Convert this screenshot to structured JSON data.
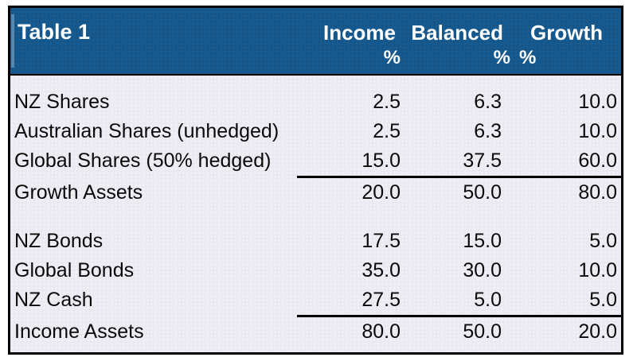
{
  "table": {
    "title": "Table 1",
    "columns": {
      "income": "Income",
      "balanced": "Balanced",
      "growth": "Growth"
    },
    "units": {
      "income": "%",
      "balanced": "%",
      "growth": "%"
    },
    "sections": [
      {
        "rows": [
          {
            "label": "NZ Shares",
            "values": [
              "2.5",
              "6.3",
              "10.0"
            ]
          },
          {
            "label": "Australian Shares (unhedged)",
            "values": [
              "2.5",
              "6.3",
              "10.0"
            ]
          },
          {
            "label": "Global Shares (50% hedged)",
            "values": [
              "15.0",
              "37.5",
              "60.0"
            ]
          }
        ],
        "total": {
          "label": "Growth Assets",
          "values": [
            "20.0",
            "50.0",
            "80.0"
          ]
        }
      },
      {
        "rows": [
          {
            "label": "NZ Bonds",
            "values": [
              "17.5",
              "15.0",
              "5.0"
            ]
          },
          {
            "label": "Global Bonds",
            "values": [
              "35.0",
              "30.0",
              "10.0"
            ]
          },
          {
            "label": "NZ Cash",
            "values": [
              "27.5",
              "5.0",
              "5.0"
            ]
          }
        ],
        "total": {
          "label": "Income Assets",
          "values": [
            "80.0",
            "50.0",
            "20.0"
          ]
        }
      }
    ]
  },
  "colors": {
    "header_bg": "#175a8f",
    "header_text": "#ffffff",
    "body_bg": "#eaeaf2",
    "border": "#000000",
    "body_text": "#0a0a0a"
  },
  "chart_data": {
    "type": "table",
    "title": "Table 1",
    "columns": [
      "",
      "Income %",
      "Balanced %",
      "Growth %"
    ],
    "rows": [
      [
        "NZ Shares",
        2.5,
        6.3,
        10.0
      ],
      [
        "Australian Shares (unhedged)",
        2.5,
        6.3,
        10.0
      ],
      [
        "Global Shares (50% hedged)",
        15.0,
        37.5,
        60.0
      ],
      [
        "Growth Assets",
        20.0,
        50.0,
        80.0
      ],
      [
        "NZ Bonds",
        17.5,
        15.0,
        5.0
      ],
      [
        "Global Bonds",
        35.0,
        30.0,
        10.0
      ],
      [
        "NZ Cash",
        27.5,
        5.0,
        5.0
      ],
      [
        "Income Assets",
        80.0,
        50.0,
        20.0
      ]
    ]
  }
}
